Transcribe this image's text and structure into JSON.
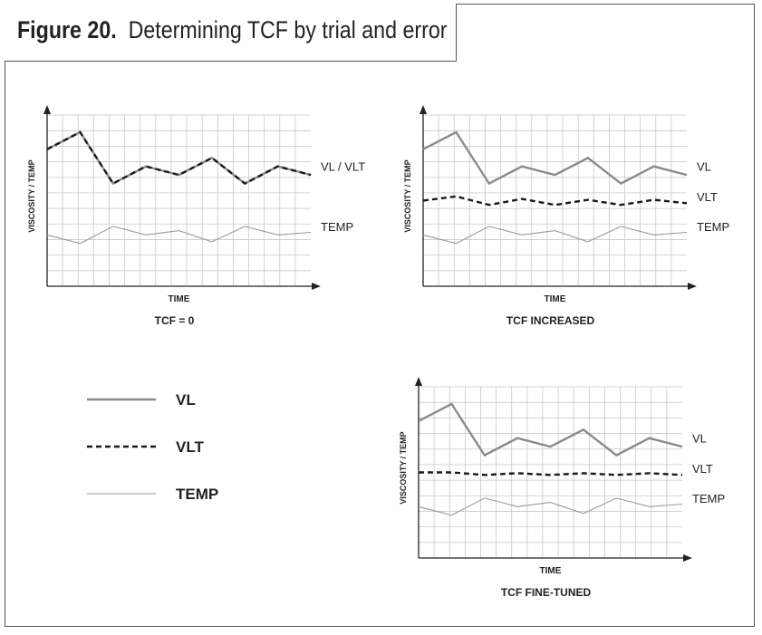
{
  "figure": {
    "number": "Figure 20.",
    "title": "Determining TCF by trial and error"
  },
  "legend": {
    "items": [
      {
        "key": "vl",
        "label": "VL",
        "style": "solid-thick",
        "color": "#8a8a8a"
      },
      {
        "key": "vlt",
        "label": "VLT",
        "style": "dashed",
        "color": "#1a1a1a"
      },
      {
        "key": "temp",
        "label": "TEMP",
        "style": "solid-thin",
        "color": "#999999"
      }
    ]
  },
  "chart_data": [
    {
      "type": "line",
      "caption": "TCF = 0",
      "xlabel": "TIME",
      "ylabel": "VISCOSITY / TEMP",
      "ylim": [
        0,
        10
      ],
      "grid": true,
      "x": [
        0,
        2,
        4,
        6,
        8,
        10,
        12,
        14,
        16
      ],
      "series": [
        {
          "name": "VL",
          "style": "solid-thick",
          "values": [
            8.0,
            9.0,
            6.0,
            7.0,
            6.5,
            7.5,
            6.0,
            7.0,
            6.5
          ]
        },
        {
          "name": "VLT",
          "style": "dashed",
          "values": [
            8.0,
            9.0,
            6.0,
            7.0,
            6.5,
            7.5,
            6.0,
            7.0,
            6.5
          ]
        },
        {
          "name": "TEMP",
          "style": "solid-thin",
          "values": [
            3.0,
            2.5,
            3.5,
            3.0,
            3.25,
            2.6,
            3.5,
            3.0,
            3.15
          ]
        }
      ],
      "end_labels": {
        "vl": "VL / VLT",
        "temp": "TEMP"
      }
    },
    {
      "type": "line",
      "caption": "TCF INCREASED",
      "xlabel": "TIME",
      "ylabel": "VISCOSITY / TEMP",
      "ylim": [
        0,
        10
      ],
      "grid": true,
      "x": [
        0,
        2,
        4,
        6,
        8,
        10,
        12,
        14,
        16
      ],
      "series": [
        {
          "name": "VL",
          "style": "solid-thick",
          "values": [
            8.0,
            9.0,
            6.0,
            7.0,
            6.5,
            7.5,
            6.0,
            7.0,
            6.5
          ]
        },
        {
          "name": "VLT",
          "style": "dashed",
          "values": [
            5.0,
            5.25,
            4.75,
            5.1,
            4.75,
            5.05,
            4.75,
            5.05,
            4.85
          ]
        },
        {
          "name": "TEMP",
          "style": "solid-thin",
          "values": [
            3.0,
            2.5,
            3.5,
            3.0,
            3.25,
            2.6,
            3.5,
            3.0,
            3.15
          ]
        }
      ],
      "end_labels": {
        "vl": "VL",
        "vlt": "VLT",
        "temp": "TEMP"
      }
    },
    {
      "type": "line",
      "caption": "TCF FINE-TUNED",
      "xlabel": "TIME",
      "ylabel": "VISCOSITY / TEMP",
      "ylim": [
        0,
        10
      ],
      "grid": true,
      "x": [
        0,
        2,
        4,
        6,
        8,
        10,
        12,
        14,
        16
      ],
      "series": [
        {
          "name": "VL",
          "style": "solid-thick",
          "values": [
            8.0,
            9.0,
            6.0,
            7.0,
            6.5,
            7.5,
            6.0,
            7.0,
            6.5
          ]
        },
        {
          "name": "VLT",
          "style": "dashed",
          "values": [
            5.0,
            5.0,
            4.85,
            4.95,
            4.85,
            4.95,
            4.85,
            4.95,
            4.85
          ]
        },
        {
          "name": "TEMP",
          "style": "solid-thin",
          "values": [
            3.0,
            2.5,
            3.5,
            3.0,
            3.25,
            2.6,
            3.5,
            3.0,
            3.15
          ]
        }
      ],
      "end_labels": {
        "vl": "VL",
        "vlt": "VLT",
        "temp": "TEMP"
      }
    }
  ]
}
